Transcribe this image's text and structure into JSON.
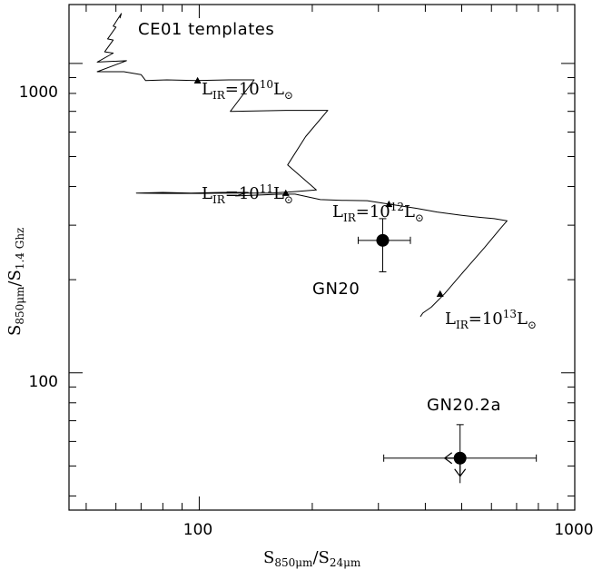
{
  "chart_data": {
    "type": "line",
    "title": "",
    "xscale": "log",
    "yscale": "log",
    "xlim": [
      45,
      1000
    ],
    "ylim": [
      36,
      1550
    ],
    "grid": false,
    "xlabel": {
      "main": "S",
      "sub1": "850μm",
      "mid": "/S",
      "sub2": "24μm"
    },
    "ylabel": {
      "main": "S",
      "sub1": "850μm",
      "mid": "/S",
      "sub2": "1.4 Ghz"
    },
    "x_ticks": [
      {
        "value": 100,
        "label": "100"
      },
      {
        "value": 1000,
        "label": "1000"
      }
    ],
    "y_ticks": [
      {
        "value": 100,
        "label": "100"
      },
      {
        "value": 1000,
        "label": "1000"
      }
    ],
    "template_curve": {
      "name": "CE01 templates",
      "points": [
        [
          61.5,
          1400
        ],
        [
          62,
          1450
        ],
        [
          59,
          1320
        ],
        [
          60,
          1310
        ],
        [
          57,
          1200
        ],
        [
          59,
          1190
        ],
        [
          56,
          1090
        ],
        [
          59,
          1080
        ],
        [
          53.5,
          1010
        ],
        [
          64,
          1020
        ],
        [
          53.5,
          940
        ],
        [
          63,
          940
        ],
        [
          70,
          920
        ],
        [
          72,
          880
        ],
        [
          82,
          885
        ],
        [
          98,
          880
        ],
        [
          120,
          885
        ],
        [
          140,
          885
        ],
        [
          121,
          700
        ],
        [
          170,
          705
        ],
        [
          220,
          705
        ],
        [
          192,
          580
        ],
        [
          172,
          470
        ],
        [
          205,
          390
        ],
        [
          178,
          385
        ],
        [
          155,
          381
        ],
        [
          125,
          381
        ],
        [
          100,
          380
        ],
        [
          80,
          380
        ],
        [
          68,
          381
        ],
        [
          80,
          383
        ],
        [
          95,
          381
        ],
        [
          115,
          383
        ],
        [
          135,
          383
        ],
        [
          125,
          373
        ],
        [
          140,
          375
        ],
        [
          165,
          378
        ],
        [
          180,
          378
        ],
        [
          210,
          363
        ],
        [
          240,
          361
        ],
        [
          280,
          360
        ],
        [
          320,
          351
        ],
        [
          380,
          340
        ],
        [
          430,
          331
        ],
        [
          500,
          323
        ],
        [
          560,
          318
        ],
        [
          610,
          315
        ],
        [
          660,
          310
        ],
        [
          630,
          290
        ],
        [
          575,
          254
        ],
        [
          510,
          215
        ],
        [
          450,
          180
        ],
        [
          415,
          163
        ],
        [
          394,
          156
        ],
        [
          388,
          152
        ]
      ],
      "markers": [
        {
          "x": 99,
          "y": 880,
          "label_main": "L",
          "label_sub": "IR",
          "label_eq": "=10",
          "label_exp": "10",
          "label_unit": "L",
          "label_sun": "⊙"
        },
        {
          "x": 170,
          "y": 381,
          "label_main": "L",
          "label_sub": "IR",
          "label_eq": "=10",
          "label_exp": "11",
          "label_unit": "L",
          "label_sun": "⊙"
        },
        {
          "x": 320,
          "y": 351,
          "label_main": "L",
          "label_sub": "IR",
          "label_eq": "=10",
          "label_exp": "12",
          "label_unit": "L",
          "label_sun": "⊙"
        },
        {
          "x": 438,
          "y": 180,
          "label_main": "L",
          "label_sub": "IR",
          "label_eq": "=10",
          "label_exp": "13",
          "label_unit": "L",
          "label_sun": "⊙"
        }
      ]
    },
    "sources": [
      {
        "name": "GN20",
        "x": 308,
        "y": 268,
        "xerr": [
          265,
          365
        ],
        "yerr": [
          212,
          315
        ],
        "limit": false
      },
      {
        "name": "GN20.2a",
        "x": 495,
        "y": 53,
        "xerr": [
          310,
          790
        ],
        "yerr": [
          44,
          68
        ],
        "limit": true
      }
    ]
  },
  "colors": {
    "axis": "#000000",
    "curve": "#000000",
    "marker": "#000000"
  }
}
